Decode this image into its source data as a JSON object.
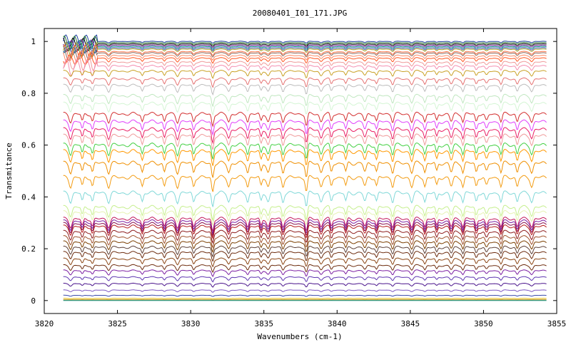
{
  "chart_data": {
    "type": "line",
    "title": "20080401_I01_171.JPG",
    "xlabel": "Wavenumbers (cm-1)",
    "ylabel": "Transmitance",
    "xlim": [
      3820,
      3855
    ],
    "ylim": [
      -0.05,
      1.05
    ],
    "x_ticks": [
      3820,
      3825,
      3830,
      3835,
      3840,
      3845,
      3850,
      3855
    ],
    "y_ticks": [
      0,
      0.2,
      0.4,
      0.6,
      0.8,
      1
    ],
    "y_tick_labels": [
      "0",
      "0.2",
      "0.4",
      "0.6",
      "0.8",
      "1"
    ],
    "x_range_of_data": [
      3821.3,
      3854.3
    ],
    "grid": false,
    "legend": "none",
    "absorption_lines_cm-1": [
      3821.8,
      3822.6,
      3823.3,
      3824.4,
      3826.7,
      3828.2,
      3829.1,
      3830.2,
      3831.5,
      3832.6,
      3833.9,
      3834.8,
      3835.3,
      3836.3,
      3837.9,
      3838.9,
      3839.6,
      3840.6,
      3841.9,
      3842.7,
      3843.8,
      3845.1,
      3846.0,
      3846.8,
      3847.8,
      3848.6,
      3849.5,
      3850.2,
      3851.2,
      3852.3,
      3853.3
    ],
    "series": [
      {
        "baseline": 1.0,
        "color": "#1f3f9f"
      },
      {
        "baseline": 0.995,
        "color": "#2e7d32"
      },
      {
        "baseline": 0.99,
        "color": "#000000"
      },
      {
        "baseline": 0.985,
        "color": "#6a1b9a"
      },
      {
        "baseline": 0.98,
        "color": "#00897b"
      },
      {
        "baseline": 0.975,
        "color": "#3f51b5"
      },
      {
        "baseline": 0.97,
        "color": "#9e9d24"
      },
      {
        "baseline": 0.96,
        "color": "#ff7043"
      },
      {
        "baseline": 0.955,
        "color": "#8d6e63"
      },
      {
        "baseline": 0.945,
        "color": "#ff8a65"
      },
      {
        "baseline": 0.935,
        "color": "#ff5722"
      },
      {
        "baseline": 0.92,
        "color": "#ef9a9a"
      },
      {
        "baseline": 0.905,
        "color": "#f48fb1"
      },
      {
        "baseline": 0.885,
        "color": "#c9a227"
      },
      {
        "baseline": 0.855,
        "color": "#e57373"
      },
      {
        "baseline": 0.83,
        "color": "#bdbdbd"
      },
      {
        "baseline": 0.79,
        "color": "#c0e7c0"
      },
      {
        "baseline": 0.76,
        "color": "#d4f5d4"
      },
      {
        "baseline": 0.72,
        "color": "#d32f2f"
      },
      {
        "baseline": 0.69,
        "color": "#e040fb"
      },
      {
        "baseline": 0.66,
        "color": "#e91e63"
      },
      {
        "baseline": 0.635,
        "color": "#ef9a9a"
      },
      {
        "baseline": 0.6,
        "color": "#43d043"
      },
      {
        "baseline": 0.575,
        "color": "#ff9800"
      },
      {
        "baseline": 0.53,
        "color": "#ef8f00"
      },
      {
        "baseline": 0.475,
        "color": "#f39c12"
      },
      {
        "baseline": 0.415,
        "color": "#80d8d8"
      },
      {
        "baseline": 0.36,
        "color": "#c6ef8e"
      },
      {
        "baseline": 0.34,
        "color": "#e6f2b2"
      },
      {
        "baseline": 0.315,
        "color": "#c2185b"
      },
      {
        "baseline": 0.305,
        "color": "#7b1fa2"
      },
      {
        "baseline": 0.295,
        "color": "#880e4f"
      },
      {
        "baseline": 0.285,
        "color": "#b71c1c"
      },
      {
        "baseline": 0.265,
        "color": "#8d1c1c"
      },
      {
        "baseline": 0.245,
        "color": "#a0522d"
      },
      {
        "baseline": 0.225,
        "color": "#7b3f00"
      },
      {
        "baseline": 0.205,
        "color": "#5d4037"
      },
      {
        "baseline": 0.185,
        "color": "#6d2c0e"
      },
      {
        "baseline": 0.16,
        "color": "#8b4513"
      },
      {
        "baseline": 0.135,
        "color": "#6d2c0e"
      },
      {
        "baseline": 0.115,
        "color": "#7b1fa2"
      },
      {
        "baseline": 0.09,
        "color": "#5e35b1"
      },
      {
        "baseline": 0.065,
        "color": "#4a148c"
      },
      {
        "baseline": 0.04,
        "color": "#7e57c2"
      },
      {
        "baseline": 0.02,
        "color": "#3949ab"
      },
      {
        "baseline": 0.008,
        "color": "#e6b800"
      },
      {
        "baseline": 0.003,
        "color": "#b8860b"
      },
      {
        "baseline": 0.0,
        "color": "#00897b"
      }
    ]
  }
}
